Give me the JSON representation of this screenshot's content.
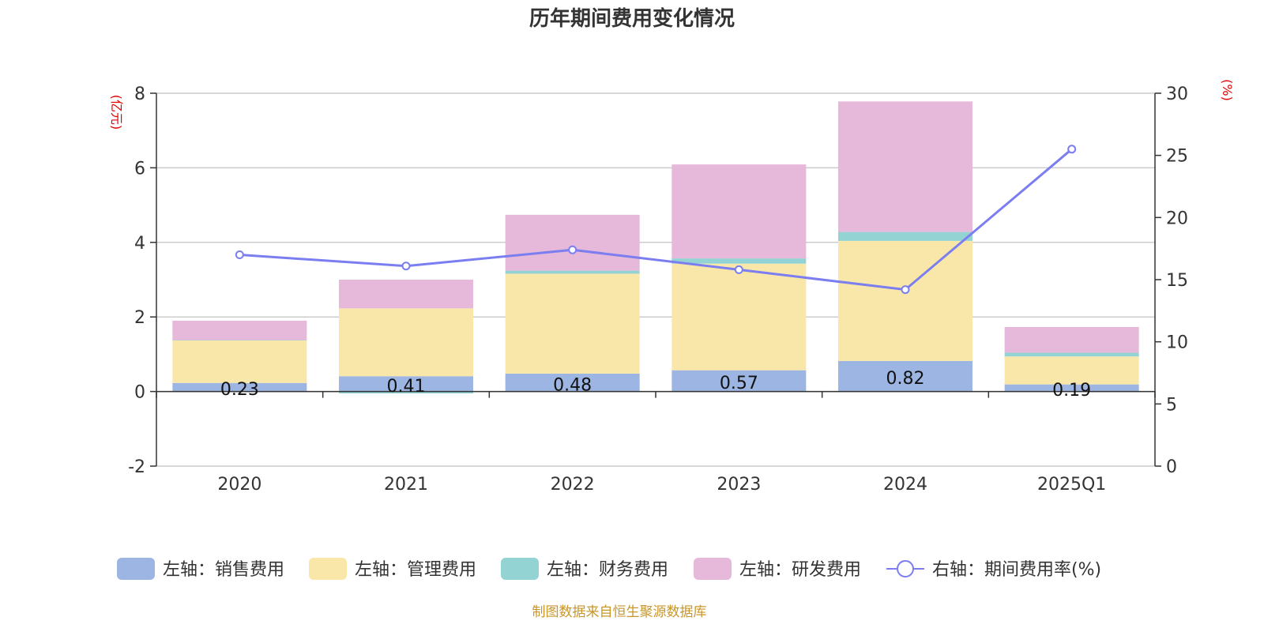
{
  "chart_data": {
    "type": "bar",
    "title": "历年期间费用变化情况",
    "categories": [
      "2020",
      "2021",
      "2022",
      "2023",
      "2024",
      "2025Q1"
    ],
    "series": [
      {
        "name": "左轴：销售费用",
        "axis": "left",
        "kind": "stacked-bar",
        "color": "#9db5e2",
        "values": [
          0.23,
          0.41,
          0.48,
          0.57,
          0.82,
          0.19
        ],
        "labels": [
          "0.23",
          "0.41",
          "0.48",
          "0.57",
          "0.82",
          "0.19"
        ]
      },
      {
        "name": "左轴：管理费用",
        "axis": "left",
        "kind": "stacked-bar",
        "color": "#f8e7a8",
        "values": [
          1.14,
          1.82,
          2.68,
          2.86,
          3.22,
          0.75
        ]
      },
      {
        "name": "左轴：财务费用",
        "axis": "left",
        "kind": "stacked-bar",
        "color": "#94d3d4",
        "values": [
          0.01,
          -0.05,
          0.08,
          0.14,
          0.24,
          0.1
        ]
      },
      {
        "name": "左轴：研发费用",
        "axis": "left",
        "kind": "stacked-bar",
        "color": "#e6b8d9",
        "values": [
          0.52,
          0.77,
          1.5,
          2.52,
          3.5,
          0.69
        ]
      },
      {
        "name": "右轴：期间费用率(%)",
        "axis": "right",
        "kind": "line",
        "color": "#7b7ef0",
        "values": [
          17.0,
          16.1,
          17.4,
          15.8,
          14.2,
          25.5
        ]
      }
    ],
    "y_left": {
      "label": "(亿元)",
      "min": -2,
      "max": 8,
      "ticks": [
        "-2",
        "0",
        "2",
        "4",
        "6",
        "8"
      ]
    },
    "y_right": {
      "label": "(%)",
      "min": 0,
      "max": 30,
      "ticks": [
        "0",
        "5",
        "10",
        "15",
        "20",
        "25",
        "30"
      ]
    },
    "grid": true,
    "legend_position": "bottom",
    "source": "制图数据来自恒生聚源数据库"
  }
}
